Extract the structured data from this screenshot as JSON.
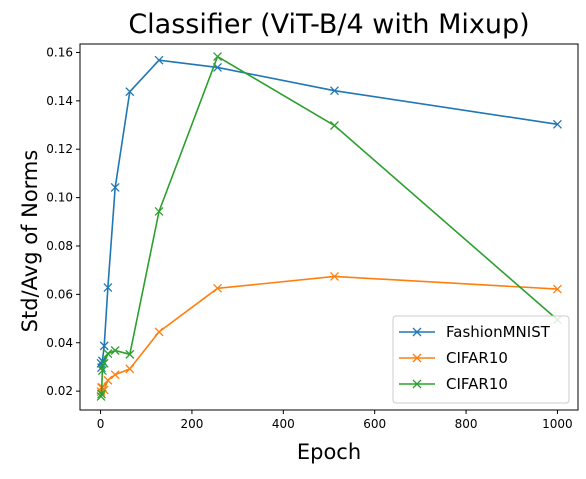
{
  "chart_data": {
    "type": "line",
    "title": "Classifier (ViT-B/4 with Mixup)",
    "xlabel": "Epoch",
    "ylabel": "Std/Avg of Norms",
    "xlim": [
      -45,
      1045
    ],
    "ylim": [
      0.0122,
      0.1635
    ],
    "xticks": [
      0,
      200,
      400,
      600,
      800,
      1000
    ],
    "yticks": [
      0.02,
      0.04,
      0.06,
      0.08,
      0.1,
      0.12,
      0.14,
      0.16
    ],
    "xtick_labels": [
      "0",
      "200",
      "400",
      "600",
      "800",
      "1000"
    ],
    "ytick_labels": [
      "0.02",
      "0.04",
      "0.06",
      "0.08",
      "0.10",
      "0.12",
      "0.14",
      "0.16"
    ],
    "marker": "x",
    "grid": false,
    "legend_position": "lower-right",
    "series": [
      {
        "name": "FashionMNIST",
        "color": "#1f77b4",
        "x": [
          1,
          2,
          4,
          8,
          16,
          32,
          64,
          128,
          256,
          512,
          1000
        ],
        "y": [
          0.0315,
          0.0297,
          0.0325,
          0.0387,
          0.0628,
          0.1042,
          0.1438,
          0.1568,
          0.1538,
          0.1442,
          0.1303
        ]
      },
      {
        "name": "CIFAR10",
        "color": "#ff7f0e",
        "x": [
          1,
          2,
          4,
          8,
          16,
          32,
          64,
          128,
          256,
          512,
          1000
        ],
        "y": [
          0.0198,
          0.0215,
          0.0215,
          0.0205,
          0.0245,
          0.0268,
          0.0292,
          0.0445,
          0.0625,
          0.0674,
          0.0622
        ]
      },
      {
        "name": "CIFAR10",
        "color": "#2ca02c",
        "x": [
          1,
          2,
          4,
          8,
          16,
          32,
          64,
          128,
          256,
          512,
          1000
        ],
        "y": [
          0.0178,
          0.0188,
          0.0285,
          0.0315,
          0.0355,
          0.0368,
          0.0352,
          0.0943,
          0.1583,
          0.1298,
          0.0495
        ]
      }
    ]
  }
}
